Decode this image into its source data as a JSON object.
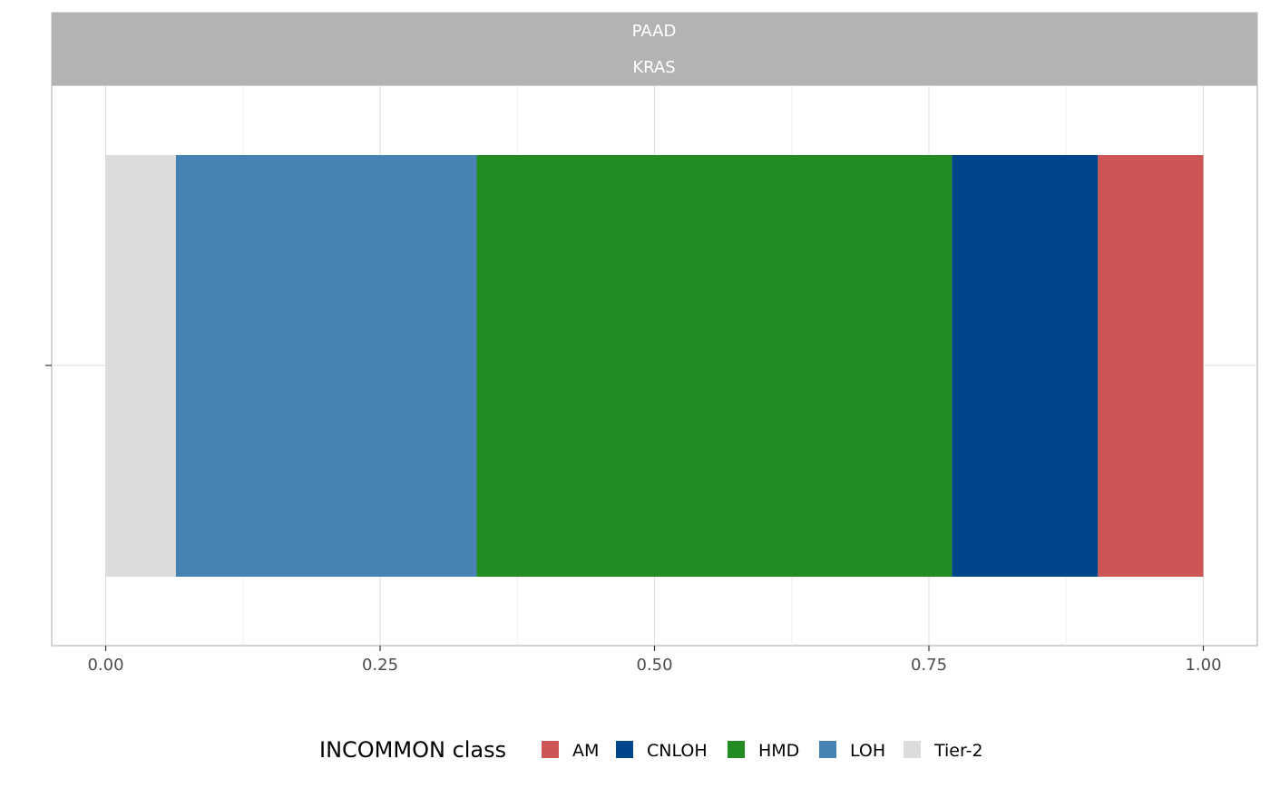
{
  "chart_data": {
    "type": "bar",
    "orientation": "horizontal",
    "stacked": true,
    "facet_labels": [
      "PAAD",
      "KRAS"
    ],
    "xlabel": "",
    "ylabel": "",
    "xlim": [
      0,
      1
    ],
    "x_ticks": [
      "0.00",
      "0.25",
      "0.50",
      "0.75",
      "1.00"
    ],
    "x_tick_values": [
      0,
      0.25,
      0.5,
      0.75,
      1.0
    ],
    "grid": true,
    "legend": {
      "title": "INCOMMON class",
      "position": "bottom",
      "entries": [
        {
          "name": "AM",
          "color": "#CD5555"
        },
        {
          "name": "CNLOH",
          "color": "#00468B"
        },
        {
          "name": "HMD",
          "color": "#228B22"
        },
        {
          "name": "LOH",
          "color": "#4682B4"
        },
        {
          "name": "Tier-2",
          "color": "#DCDCDC"
        }
      ]
    },
    "series": [
      {
        "name": "Tier-2",
        "start": 0.0,
        "value": 0.064
      },
      {
        "name": "LOH",
        "start": 0.064,
        "value": 0.274
      },
      {
        "name": "HMD",
        "start": 0.338,
        "value": 0.433
      },
      {
        "name": "CNLOH",
        "start": 0.771,
        "value": 0.133
      },
      {
        "name": "AM",
        "start": 0.904,
        "value": 0.096
      }
    ]
  }
}
